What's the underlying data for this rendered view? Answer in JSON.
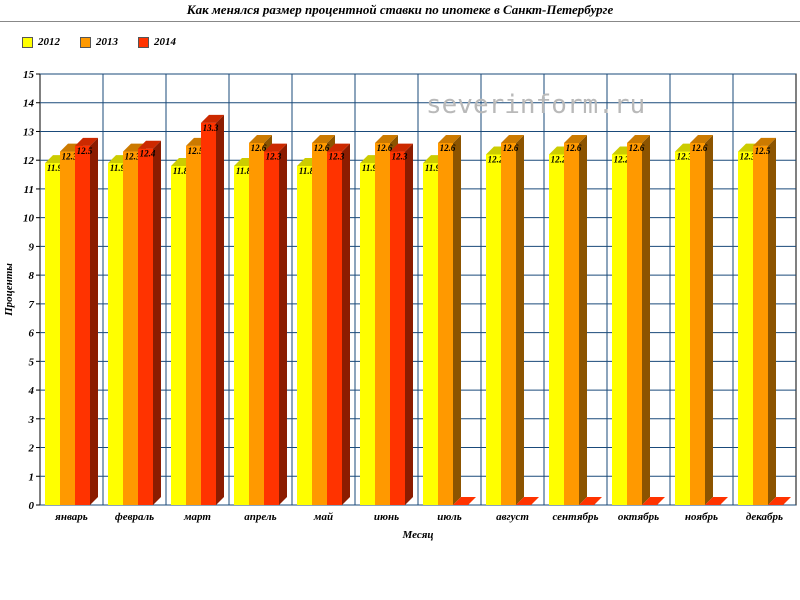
{
  "chart_data": {
    "type": "bar",
    "title": "Как менялся размер процентной ставки по ипотеке в Санкт-Петербурге",
    "xlabel": "Месяц",
    "ylabel": "Проценты",
    "ylim": [
      0,
      15
    ],
    "yticks": [
      "0",
      "1",
      "2",
      "3",
      "4",
      "5",
      "6",
      "7",
      "8",
      "9",
      "10",
      "11",
      "12",
      "13",
      "14",
      "15"
    ],
    "grid": true,
    "legend_position": "top-left",
    "watermark": "severinform.ru",
    "categories": [
      "январь",
      "февраль",
      "март",
      "апрель",
      "май",
      "июнь",
      "июль",
      "август",
      "сентябрь",
      "октябрь",
      "ноябрь",
      "декабрь"
    ],
    "series": [
      {
        "name": "2012",
        "color": "#ffff00",
        "values": [
          11.9,
          11.9,
          11.8,
          11.8,
          11.8,
          11.9,
          11.9,
          12.2,
          12.2,
          12.2,
          12.3,
          12.3
        ],
        "labels": [
          "11.9",
          "11.9",
          "11.8",
          "11.8",
          "11.8",
          "11.9",
          "11.9",
          "12.2",
          "12.2",
          "12.2",
          "12.3",
          "12.3"
        ]
      },
      {
        "name": "2013",
        "color": "#ff9900",
        "values": [
          12.3,
          12.3,
          12.5,
          12.6,
          12.6,
          12.6,
          12.6,
          12.6,
          12.6,
          12.6,
          12.6,
          12.5
        ],
        "labels": [
          "12.3",
          "12.3",
          "12.5",
          "12.6",
          "12.6",
          "12.6",
          "12.6",
          "12.6",
          "12.6",
          "12.6",
          "12.6",
          "12.5"
        ]
      },
      {
        "name": "2014",
        "color": "#ff3300",
        "values": [
          12.5,
          12.4,
          13.3,
          12.3,
          12.3,
          12.3,
          0,
          0,
          0,
          0,
          0,
          0
        ],
        "labels": [
          "12.5",
          "12.4",
          "13.3",
          "12.3",
          "12.3",
          "12.3",
          "",
          "",
          "",
          "",
          "",
          ""
        ]
      }
    ]
  }
}
